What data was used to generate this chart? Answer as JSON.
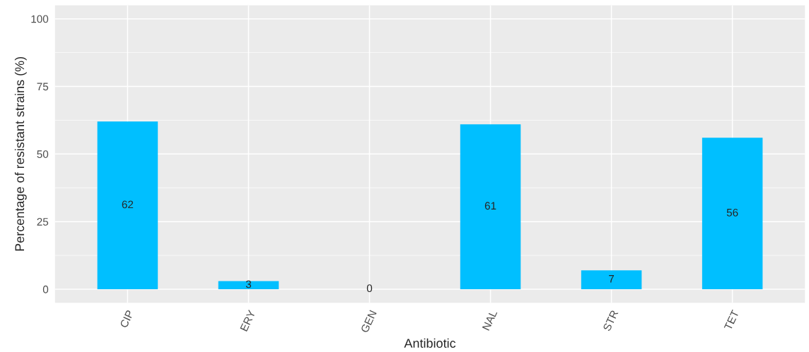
{
  "chart_data": {
    "type": "bar",
    "xlabel": "Antibiotic",
    "ylabel": "Percentage of resistant strains (%)",
    "categories": [
      "CIP",
      "ERY",
      "GEN",
      "NAL",
      "STR",
      "TET"
    ],
    "values": [
      62,
      3,
      0,
      61,
      7,
      56
    ],
    "color": "#00bfff",
    "ylim": [
      -5,
      105
    ],
    "yticks": [
      0,
      25,
      50,
      75,
      100
    ],
    "grid": true,
    "data_labels": true
  }
}
